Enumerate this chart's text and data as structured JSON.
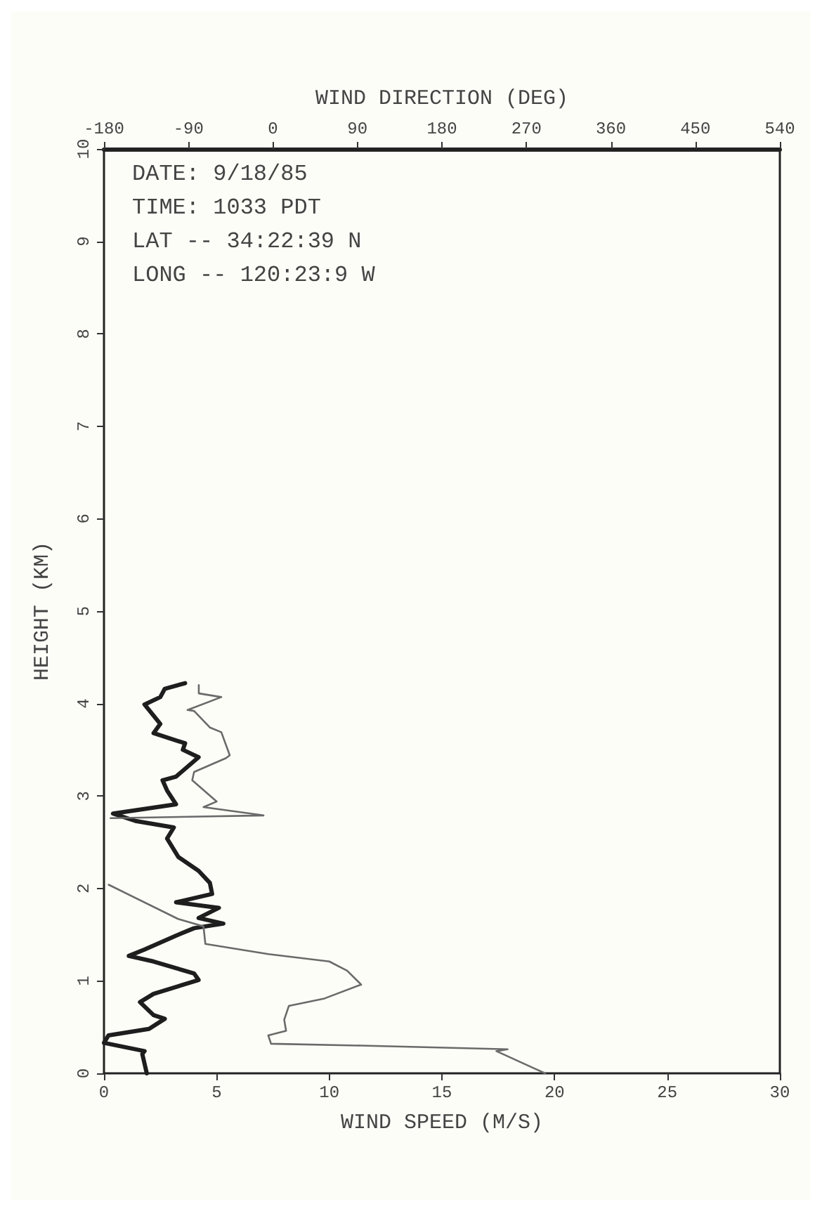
{
  "chart_data": {
    "type": "line",
    "xlabel": "WIND SPEED (M/S)",
    "x2label": "WIND DIRECTION (DEG)",
    "ylabel": "HEIGHT (KM)",
    "xlim": [
      0,
      30
    ],
    "xticks": [
      0,
      5,
      10,
      15,
      20,
      25,
      30
    ],
    "x2lim": [
      -180,
      540
    ],
    "x2ticks": [
      -180,
      -90,
      0,
      90,
      180,
      270,
      360,
      450,
      540
    ],
    "ylim": [
      0,
      10
    ],
    "yticks": [
      0,
      1,
      2,
      3,
      4,
      5,
      6,
      7,
      8,
      9,
      10
    ],
    "grid": false,
    "marker": "none",
    "line_style": "solid",
    "annotations": [
      "DATE: 9/18/85",
      "TIME: 1033 PDT",
      "LAT -- 34:22:39 N",
      "LONG -- 120:23:9 W"
    ],
    "series": [
      {
        "color": "#1e1e1e",
        "x": [
          1.9,
          1.7,
          1.8,
          0.0,
          0.2,
          2.0,
          2.7,
          2.2,
          1.6,
          2.2,
          4.2,
          4.0,
          2.2,
          1.1,
          1.8,
          3.2,
          4.0,
          5.3,
          4.2,
          5.1,
          3.2,
          4.8,
          4.7,
          4.2,
          3.3,
          2.8,
          3.1,
          1.4,
          0.4,
          3.2,
          2.8,
          2.6,
          3.2,
          4.2,
          3.5,
          3.6,
          2.2,
          2.5,
          1.8,
          2.5,
          2.7,
          3.6
        ],
        "values": [
          0.0,
          0.21,
          0.24,
          0.33,
          0.41,
          0.48,
          0.59,
          0.63,
          0.77,
          0.86,
          1.01,
          1.08,
          1.21,
          1.27,
          1.34,
          1.49,
          1.57,
          1.62,
          1.68,
          1.79,
          1.85,
          1.94,
          2.06,
          2.19,
          2.34,
          2.54,
          2.66,
          2.73,
          2.81,
          2.91,
          3.06,
          3.17,
          3.21,
          3.42,
          3.5,
          3.57,
          3.68,
          3.78,
          3.99,
          4.07,
          4.16,
          4.22
        ]
      },
      {
        "color": "#6a6a6a",
        "axis": "x2",
        "x": [
          290,
          238,
          250,
          94,
          -2,
          -5,
          14,
          12,
          17,
          55,
          94,
          79,
          60,
          -5,
          -72,
          -74,
          -101,
          -175,
          null,
          -173,
          -10,
          -74,
          -60,
          -86,
          -84,
          -50,
          -46,
          -55,
          -67,
          -84,
          -91,
          -55,
          -79,
          -79
        ],
        "values": [
          0.0,
          0.24,
          0.26,
          0.3,
          0.32,
          0.41,
          0.46,
          0.58,
          0.73,
          0.81,
          0.96,
          1.11,
          1.21,
          1.29,
          1.4,
          1.59,
          1.67,
          2.04,
          null,
          2.76,
          2.79,
          2.88,
          2.94,
          3.17,
          3.26,
          3.41,
          3.44,
          3.69,
          3.74,
          3.92,
          3.93,
          4.07,
          4.11,
          4.2
        ]
      }
    ]
  }
}
